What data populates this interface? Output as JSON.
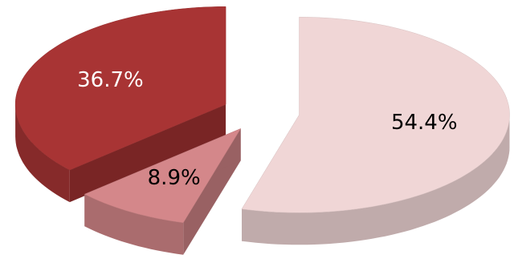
{
  "chart_data": {
    "type": "pie3d",
    "values": [
      54.4,
      8.9,
      36.7
    ],
    "value_labels": [
      "54.4%",
      "8.9%",
      "36.7%"
    ],
    "colors": [
      "#f0d6d6",
      "#d4878a",
      "#a83434"
    ]
  }
}
